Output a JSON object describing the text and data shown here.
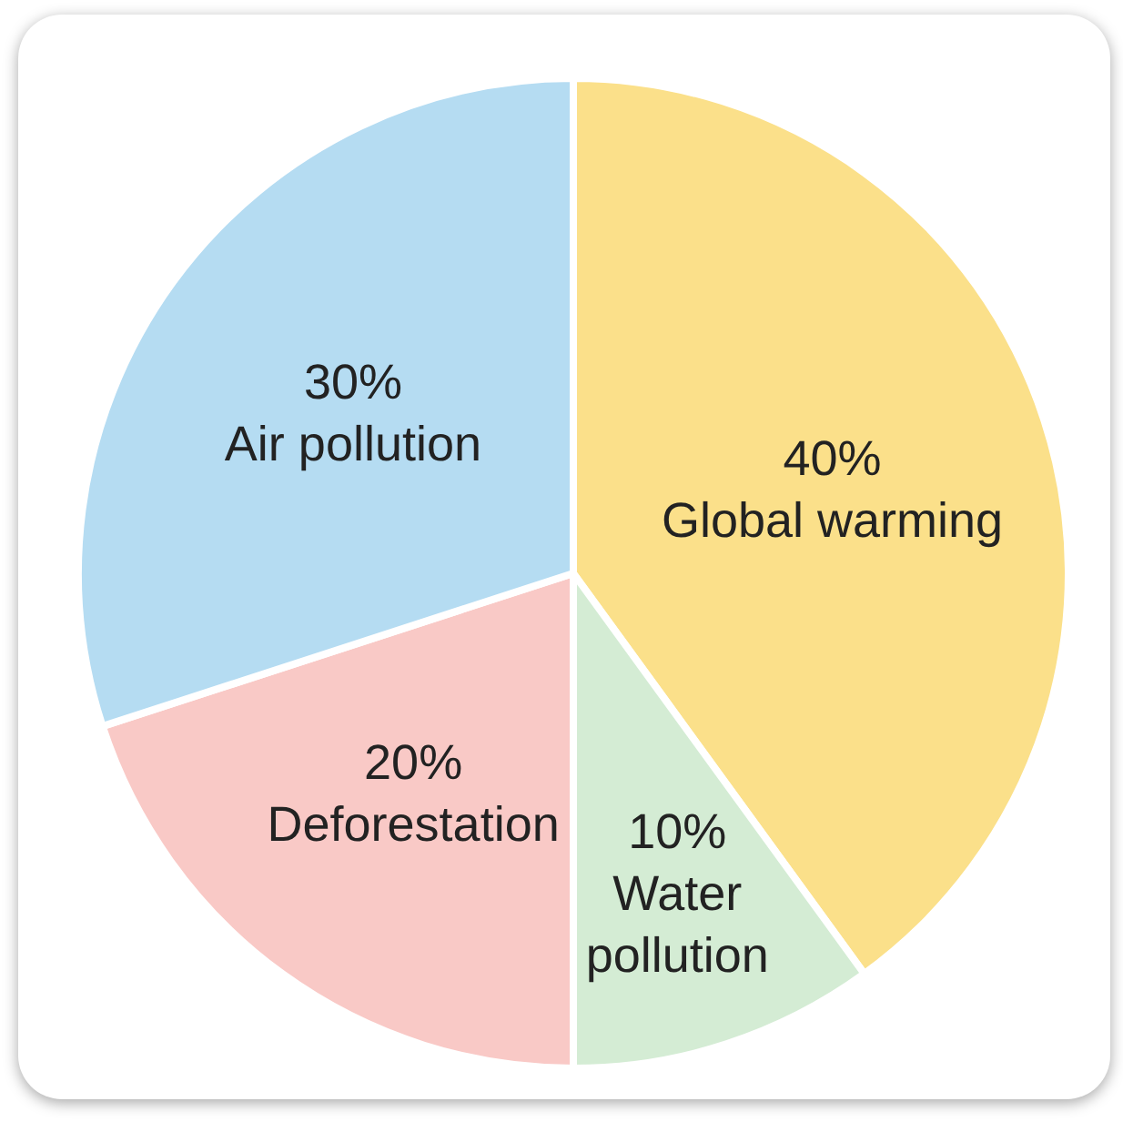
{
  "chart_data": {
    "type": "pie",
    "categories": [
      "Global warming",
      "Water pollution",
      "Deforestation",
      "Air pollution"
    ],
    "values": [
      40,
      10,
      20,
      30
    ],
    "colors": [
      "#fbe08a",
      "#d4ecd4",
      "#f9c9c6",
      "#b5dcf2"
    ],
    "value_labels": [
      "40%",
      "10%",
      "20%",
      "30%"
    ]
  }
}
